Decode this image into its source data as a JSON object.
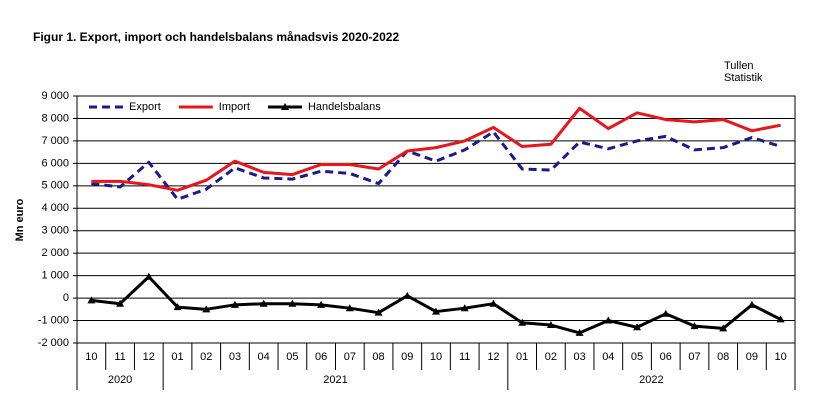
{
  "chart_data": {
    "type": "line",
    "title": "Figur 1. Export, import och handelsbalans månadsvis 2020-2022",
    "source": [
      "Tullen",
      "Statistik"
    ],
    "ylabel": "Mn euro",
    "categories": [
      "10",
      "11",
      "12",
      "01",
      "02",
      "03",
      "04",
      "05",
      "06",
      "07",
      "08",
      "09",
      "10",
      "11",
      "12",
      "01",
      "02",
      "03",
      "04",
      "05",
      "06",
      "07",
      "08",
      "09",
      "10"
    ],
    "x_groups": [
      {
        "label": "2020",
        "count": 3
      },
      {
        "label": "2021",
        "count": 12
      },
      {
        "label": "2022",
        "count": 10
      }
    ],
    "ylim": [
      -2000,
      9000
    ],
    "yticks": [
      {
        "value": -2000,
        "label": "-2 000"
      },
      {
        "value": -1000,
        "label": "-1 000"
      },
      0,
      {
        "value": 1000,
        "label": "1 000"
      },
      {
        "value": 2000,
        "label": "2 000"
      },
      {
        "value": 3000,
        "label": "3 000"
      },
      {
        "value": 4000,
        "label": "4 000"
      },
      {
        "value": 5000,
        "label": "5 000"
      },
      {
        "value": 6000,
        "label": "6 000"
      },
      {
        "value": 7000,
        "label": "7 000"
      },
      {
        "value": 8000,
        "label": "8 000"
      },
      {
        "value": 9000,
        "label": "9 000"
      }
    ],
    "grid": true,
    "legend": "top-left",
    "series": [
      {
        "name": "Export",
        "color": "#1a1a8c",
        "dash": true,
        "marker": false,
        "values": [
          5100,
          4950,
          6050,
          4400,
          4850,
          5800,
          5350,
          5300,
          5650,
          5550,
          5100,
          6550,
          6100,
          6600,
          7400,
          5750,
          5700,
          6950,
          6650,
          7000,
          7200,
          6600,
          6700,
          7150,
          6750
        ]
      },
      {
        "name": "Import",
        "color": "#e8151b",
        "dash": false,
        "marker": false,
        "values": [
          5200,
          5200,
          5050,
          4800,
          5250,
          6100,
          5600,
          5500,
          5950,
          5950,
          5750,
          6550,
          6700,
          7000,
          7600,
          6750,
          6850,
          8450,
          7550,
          8250,
          7950,
          7850,
          7950,
          7450,
          7700
        ]
      },
      {
        "name": "Handelsbalans",
        "color": "#000000",
        "dash": false,
        "marker": true,
        "values": [
          -100,
          -250,
          950,
          -400,
          -500,
          -300,
          -250,
          -250,
          -300,
          -450,
          -650,
          100,
          -600,
          -450,
          -250,
          -1100,
          -1200,
          -1550,
          -1000,
          -1300,
          -700,
          -1250,
          -1350,
          -300,
          -950
        ]
      }
    ]
  }
}
